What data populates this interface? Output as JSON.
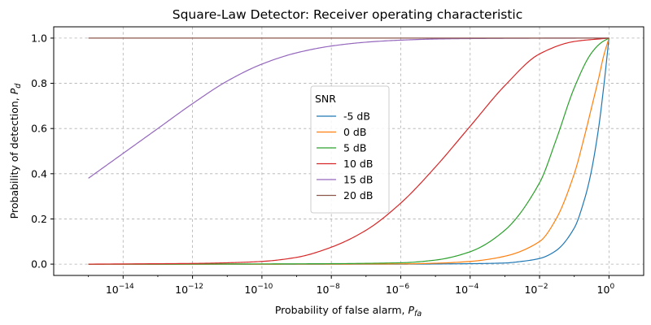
{
  "chart_data": {
    "type": "line",
    "title": "Square-Law Detector: Receiver operating characteristic",
    "xlabel": {
      "main": "Probability of false alarm, ",
      "sym": "P",
      "sub": "fa"
    },
    "ylabel": {
      "main": "Probability of detection, ",
      "sym": "P",
      "sub": "d"
    },
    "x_scale": "log",
    "xlim": [
      1e-16,
      10.0
    ],
    "ylim": [
      -0.05,
      1.05
    ],
    "grid": true,
    "x_ticks": [
      {
        "base": "10",
        "exp": "−14",
        "value": 1e-14
      },
      {
        "base": "10",
        "exp": "−12",
        "value": 1e-12
      },
      {
        "base": "10",
        "exp": "−10",
        "value": 1e-10
      },
      {
        "base": "10",
        "exp": "−8",
        "value": 1e-08
      },
      {
        "base": "10",
        "exp": "−6",
        "value": 1e-06
      },
      {
        "base": "10",
        "exp": "−4",
        "value": 0.0001
      },
      {
        "base": "10",
        "exp": "−2",
        "value": 0.01
      },
      {
        "base": "10",
        "exp": "0",
        "value": 1
      }
    ],
    "y_ticks": [
      {
        "label": "0.0",
        "value": 0.0
      },
      {
        "label": "0.2",
        "value": 0.2
      },
      {
        "label": "0.4",
        "value": 0.4
      },
      {
        "label": "0.6",
        "value": 0.6
      },
      {
        "label": "0.8",
        "value": 0.8
      },
      {
        "label": "1.0",
        "value": 1.0
      }
    ],
    "legend": {
      "title": "SNR",
      "placement": "center"
    },
    "series": [
      {
        "name": "-5 dB",
        "color": "#1f77b4",
        "x": [
          1e-15,
          1e-10,
          1e-06,
          0.0001,
          0.001,
          0.003,
          0.01,
          0.03,
          0.1,
          0.2,
          0.3,
          0.5,
          0.7,
          1.0
        ],
        "y": [
          0,
          0,
          0,
          0.002,
          0.005,
          0.012,
          0.025,
          0.06,
          0.16,
          0.29,
          0.4,
          0.6,
          0.78,
          1.0
        ]
      },
      {
        "name": "0 dB",
        "color": "#ff7f0e",
        "x": [
          1e-15,
          1e-10,
          1e-06,
          1e-05,
          0.0001,
          0.001,
          0.01,
          0.03,
          0.1,
          0.2,
          0.3,
          0.5,
          0.7,
          1.0
        ],
        "y": [
          0,
          0,
          0.001,
          0.004,
          0.012,
          0.035,
          0.1,
          0.2,
          0.4,
          0.57,
          0.68,
          0.82,
          0.92,
          1.0
        ]
      },
      {
        "name": "5 dB",
        "color": "#2ca02c",
        "x": [
          1e-15,
          1e-10,
          1e-08,
          1e-06,
          1e-05,
          0.0001,
          0.001,
          0.01,
          0.03,
          0.1,
          0.3,
          0.6,
          1.0
        ],
        "y": [
          0,
          0.001,
          0.002,
          0.006,
          0.018,
          0.055,
          0.15,
          0.36,
          0.55,
          0.78,
          0.93,
          0.98,
          1.0
        ]
      },
      {
        "name": "10 dB",
        "color": "#d62728",
        "x": [
          1e-15,
          1e-12,
          1e-11,
          1e-10,
          1e-09,
          1e-08,
          1e-07,
          1e-06,
          1e-05,
          0.0001,
          0.001,
          0.01,
          0.1,
          1.0
        ],
        "y": [
          0,
          0.003,
          0.006,
          0.012,
          0.03,
          0.075,
          0.15,
          0.27,
          0.43,
          0.61,
          0.79,
          0.93,
          0.985,
          1.0
        ]
      },
      {
        "name": "15 dB",
        "color": "#9467bd",
        "x": [
          1e-15,
          1e-14,
          1e-13,
          1e-12,
          1e-11,
          1e-10,
          1e-09,
          1e-08,
          1e-07,
          1e-06,
          1e-05,
          0.0001,
          0.01,
          1.0
        ],
        "y": [
          0.38,
          0.49,
          0.6,
          0.71,
          0.81,
          0.885,
          0.935,
          0.965,
          0.982,
          0.991,
          0.996,
          0.998,
          0.9995,
          1.0
        ]
      },
      {
        "name": "20 dB",
        "color": "#8c564b",
        "x": [
          1e-15,
          1e-10,
          1e-05,
          1.0
        ],
        "y": [
          1.0,
          1.0,
          1.0,
          1.0
        ]
      }
    ]
  }
}
